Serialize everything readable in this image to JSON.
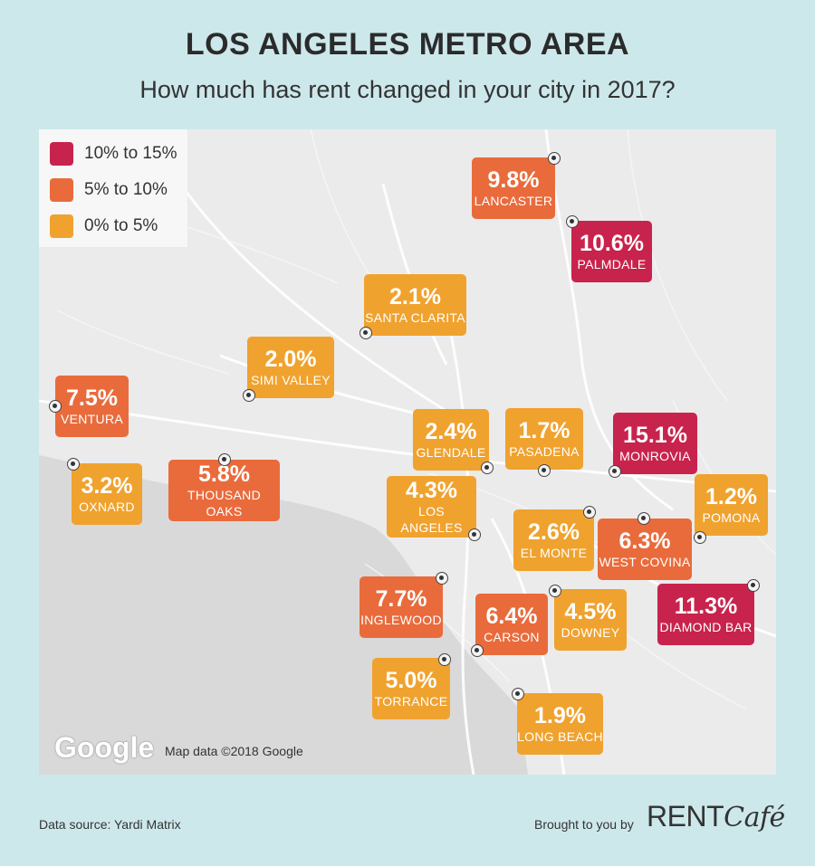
{
  "header": {
    "title": "LOS ANGELES METRO AREA",
    "subtitle": "How much has rent changed in your city in 2017?"
  },
  "legend": [
    {
      "label": "10% to 15%",
      "color": "#c8234d"
    },
    {
      "label": "5% to 10%",
      "color": "#e96b3c"
    },
    {
      "label": "0% to 5%",
      "color": "#f0a22e"
    }
  ],
  "colors": {
    "high": "#c8234d",
    "mid": "#e96b3c",
    "low": "#f0a22e",
    "map_bg": "#ebebeb",
    "page_bg": "#cde8eb"
  },
  "cities": [
    {
      "pct": "9.8%",
      "name": "LANCASTER",
      "tier": "mid"
    },
    {
      "pct": "10.6%",
      "name": "PALMDALE",
      "tier": "high"
    },
    {
      "pct": "2.1%",
      "name": "SANTA CLARITA",
      "tier": "low"
    },
    {
      "pct": "2.0%",
      "name": "SIMI VALLEY",
      "tier": "low"
    },
    {
      "pct": "7.5%",
      "name": "VENTURA",
      "tier": "mid"
    },
    {
      "pct": "2.4%",
      "name": "GLENDALE",
      "tier": "low"
    },
    {
      "pct": "1.7%",
      "name": "PASADENA",
      "tier": "low"
    },
    {
      "pct": "15.1%",
      "name": "MONROVIA",
      "tier": "high"
    },
    {
      "pct": "3.2%",
      "name": "OXNARD",
      "tier": "low"
    },
    {
      "pct": "5.8%",
      "name": "THOUSAND OAKS",
      "tier": "mid"
    },
    {
      "pct": "4.3%",
      "name": "LOS ANGELES",
      "tier": "low"
    },
    {
      "pct": "2.6%",
      "name": "EL MONTE",
      "tier": "low"
    },
    {
      "pct": "6.3%",
      "name": "WEST COVINA",
      "tier": "mid"
    },
    {
      "pct": "1.2%",
      "name": "POMONA",
      "tier": "low"
    },
    {
      "pct": "7.7%",
      "name": "INGLEWOOD",
      "tier": "mid"
    },
    {
      "pct": "6.4%",
      "name": "CARSON",
      "tier": "mid"
    },
    {
      "pct": "4.5%",
      "name": "DOWNEY",
      "tier": "low"
    },
    {
      "pct": "11.3%",
      "name": "DIAMOND BAR",
      "tier": "high"
    },
    {
      "pct": "5.0%",
      "name": "TORRANCE",
      "tier": "low"
    },
    {
      "pct": "1.9%",
      "name": "LONG BEACH",
      "tier": "low"
    }
  ],
  "map_attribution": {
    "logo": "Google",
    "text": "Map data ©2018 Google"
  },
  "footer": {
    "source": "Data source: Yardi Matrix",
    "brought": "Brought to you by",
    "brand_main": "RENT",
    "brand_script": "Café"
  }
}
